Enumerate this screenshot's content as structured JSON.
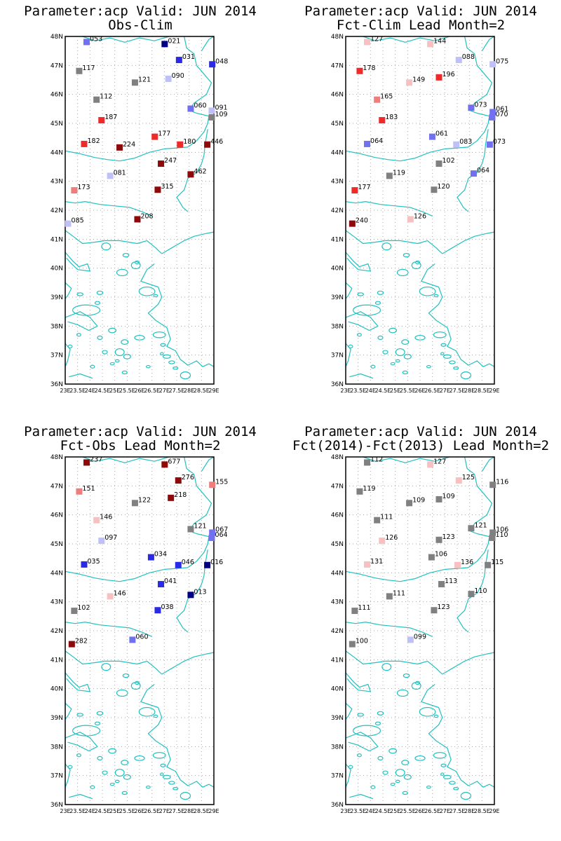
{
  "colors": {
    "coast": "#22c0c0",
    "grid": "#a8a8a8",
    "frame": "#000000",
    "scale": {
      "darkblue": "#000080",
      "blue": "#2a2ae6",
      "medblue": "#7070f0",
      "lightblue": "#c0c0f8",
      "gray": "#808080",
      "lightred": "#f8c0c0",
      "pink": "#f07c7c",
      "red": "#ee2a2a",
      "darkred": "#8c0a0a"
    }
  },
  "axes": {
    "lat_range": [
      36,
      48
    ],
    "lon_range": [
      23,
      29
    ],
    "lat_ticks": [
      "36N",
      "37N",
      "38N",
      "39N",
      "40N",
      "41N",
      "42N",
      "43N",
      "44N",
      "45N",
      "46N",
      "47N",
      "48N"
    ],
    "lon_ticks": [
      "23E",
      "23.5E",
      "24E",
      "24.5E",
      "25E",
      "25.5E",
      "26E",
      "26.5E",
      "27E",
      "27.5E",
      "28E",
      "28.5E",
      "29E"
    ]
  },
  "panels": [
    {
      "title_line1": "Parameter:acp Valid: JUN 2014",
      "title_line2": "Obs-Clim",
      "stations": [
        {
          "lon": 23.85,
          "lat": 47.82,
          "label": "053",
          "color": "medblue"
        },
        {
          "lon": 27.0,
          "lat": 47.75,
          "label": "021",
          "color": "darkblue"
        },
        {
          "lon": 27.58,
          "lat": 47.2,
          "label": "031",
          "color": "blue"
        },
        {
          "lon": 28.92,
          "lat": 47.05,
          "label": "048",
          "color": "blue"
        },
        {
          "lon": 23.55,
          "lat": 46.82,
          "label": "117",
          "color": "gray"
        },
        {
          "lon": 27.15,
          "lat": 46.55,
          "label": "090",
          "color": "lightblue"
        },
        {
          "lon": 25.8,
          "lat": 46.42,
          "label": "121",
          "color": "gray"
        },
        {
          "lon": 24.25,
          "lat": 45.83,
          "label": "112",
          "color": "gray"
        },
        {
          "lon": 28.05,
          "lat": 45.52,
          "label": "060",
          "color": "medblue"
        },
        {
          "lon": 28.9,
          "lat": 45.45,
          "label": "091",
          "color": "lightblue"
        },
        {
          "lon": 28.9,
          "lat": 45.22,
          "label": "109",
          "color": "gray"
        },
        {
          "lon": 24.45,
          "lat": 45.12,
          "label": "187",
          "color": "red"
        },
        {
          "lon": 26.6,
          "lat": 44.55,
          "label": "177",
          "color": "red"
        },
        {
          "lon": 23.75,
          "lat": 44.3,
          "label": "182",
          "color": "red"
        },
        {
          "lon": 27.62,
          "lat": 44.28,
          "label": "180",
          "color": "red"
        },
        {
          "lon": 28.72,
          "lat": 44.28,
          "label": "446",
          "color": "darkred"
        },
        {
          "lon": 25.18,
          "lat": 44.18,
          "label": "224",
          "color": "darkred"
        },
        {
          "lon": 26.85,
          "lat": 43.62,
          "label": "247",
          "color": "darkred"
        },
        {
          "lon": 24.8,
          "lat": 43.2,
          "label": "081",
          "color": "lightblue"
        },
        {
          "lon": 28.05,
          "lat": 43.25,
          "label": "462",
          "color": "darkred"
        },
        {
          "lon": 23.35,
          "lat": 42.7,
          "label": "173",
          "color": "pink"
        },
        {
          "lon": 26.72,
          "lat": 42.72,
          "label": "315",
          "color": "darkred"
        },
        {
          "lon": 25.9,
          "lat": 41.7,
          "label": "208",
          "color": "darkred"
        },
        {
          "lon": 23.1,
          "lat": 41.55,
          "label": "085",
          "color": "lightblue"
        }
      ]
    },
    {
      "title_line1": "Parameter:acp Valid: JUN 2014",
      "title_line2": "Fct-Clim Lead Month=2",
      "stations": [
        {
          "lon": 23.85,
          "lat": 47.82,
          "label": "127",
          "color": "lightred"
        },
        {
          "lon": 26.4,
          "lat": 47.75,
          "label": "144",
          "color": "lightred"
        },
        {
          "lon": 27.55,
          "lat": 47.2,
          "label": "088",
          "color": "lightblue"
        },
        {
          "lon": 28.92,
          "lat": 47.05,
          "label": "075",
          "color": "lightblue"
        },
        {
          "lon": 23.55,
          "lat": 46.82,
          "label": "178",
          "color": "red"
        },
        {
          "lon": 26.75,
          "lat": 46.6,
          "label": "196",
          "color": "red"
        },
        {
          "lon": 25.55,
          "lat": 46.42,
          "label": "149",
          "color": "lightred"
        },
        {
          "lon": 24.25,
          "lat": 45.83,
          "label": "165",
          "color": "pink"
        },
        {
          "lon": 28.05,
          "lat": 45.55,
          "label": "073",
          "color": "medblue"
        },
        {
          "lon": 28.92,
          "lat": 45.4,
          "label": "061",
          "color": "medblue"
        },
        {
          "lon": 28.9,
          "lat": 45.22,
          "label": "070",
          "color": "medblue"
        },
        {
          "lon": 24.45,
          "lat": 45.12,
          "label": "183",
          "color": "red"
        },
        {
          "lon": 26.48,
          "lat": 44.55,
          "label": "061",
          "color": "medblue"
        },
        {
          "lon": 23.85,
          "lat": 44.3,
          "label": "064",
          "color": "medblue"
        },
        {
          "lon": 27.45,
          "lat": 44.28,
          "label": "083",
          "color": "lightblue"
        },
        {
          "lon": 28.8,
          "lat": 44.28,
          "label": "073",
          "color": "medblue"
        },
        {
          "lon": 26.75,
          "lat": 43.62,
          "label": "102",
          "color": "gray"
        },
        {
          "lon": 24.75,
          "lat": 43.2,
          "label": "119",
          "color": "gray"
        },
        {
          "lon": 28.15,
          "lat": 43.28,
          "label": "064",
          "color": "medblue"
        },
        {
          "lon": 23.35,
          "lat": 42.7,
          "label": "177",
          "color": "red"
        },
        {
          "lon": 26.55,
          "lat": 42.72,
          "label": "120",
          "color": "gray"
        },
        {
          "lon": 25.6,
          "lat": 41.7,
          "label": "126",
          "color": "lightred"
        },
        {
          "lon": 23.25,
          "lat": 41.55,
          "label": "240",
          "color": "darkred"
        }
      ]
    },
    {
      "title_line1": "Parameter:acp Valid: JUN 2014",
      "title_line2": "Fct-Obs Lead Month=2",
      "stations": [
        {
          "lon": 23.85,
          "lat": 47.82,
          "label": "237",
          "color": "darkred"
        },
        {
          "lon": 27.0,
          "lat": 47.75,
          "label": "677",
          "color": "darkred"
        },
        {
          "lon": 27.55,
          "lat": 47.2,
          "label": "276",
          "color": "darkred"
        },
        {
          "lon": 28.92,
          "lat": 47.05,
          "label": "155",
          "color": "pink"
        },
        {
          "lon": 23.55,
          "lat": 46.82,
          "label": "151",
          "color": "pink"
        },
        {
          "lon": 27.25,
          "lat": 46.6,
          "label": "218",
          "color": "darkred"
        },
        {
          "lon": 25.8,
          "lat": 46.42,
          "label": "122",
          "color": "gray"
        },
        {
          "lon": 24.25,
          "lat": 45.83,
          "label": "146",
          "color": "lightred"
        },
        {
          "lon": 28.05,
          "lat": 45.52,
          "label": "121",
          "color": "gray"
        },
        {
          "lon": 28.92,
          "lat": 45.4,
          "label": "067",
          "color": "medblue"
        },
        {
          "lon": 28.9,
          "lat": 45.22,
          "label": "064",
          "color": "medblue"
        },
        {
          "lon": 24.45,
          "lat": 45.12,
          "label": "097",
          "color": "lightblue"
        },
        {
          "lon": 26.45,
          "lat": 44.55,
          "label": "034",
          "color": "blue"
        },
        {
          "lon": 23.75,
          "lat": 44.3,
          "label": "035",
          "color": "blue"
        },
        {
          "lon": 27.55,
          "lat": 44.28,
          "label": "046",
          "color": "blue"
        },
        {
          "lon": 28.72,
          "lat": 44.28,
          "label": "016",
          "color": "darkblue"
        },
        {
          "lon": 26.85,
          "lat": 43.62,
          "label": "041",
          "color": "blue"
        },
        {
          "lon": 24.8,
          "lat": 43.2,
          "label": "146",
          "color": "lightred"
        },
        {
          "lon": 28.05,
          "lat": 43.25,
          "label": "013",
          "color": "darkblue"
        },
        {
          "lon": 23.35,
          "lat": 42.7,
          "label": "102",
          "color": "gray"
        },
        {
          "lon": 26.72,
          "lat": 42.72,
          "label": "038",
          "color": "blue"
        },
        {
          "lon": 25.7,
          "lat": 41.7,
          "label": "060",
          "color": "medblue"
        },
        {
          "lon": 23.25,
          "lat": 41.55,
          "label": "282",
          "color": "darkred"
        }
      ]
    },
    {
      "title_line1": "Parameter:acp Valid: JUN 2014",
      "title_line2": "Fct(2014)-Fct(2013) Lead Month=2",
      "stations": [
        {
          "lon": 23.85,
          "lat": 47.82,
          "label": "112",
          "color": "gray"
        },
        {
          "lon": 26.4,
          "lat": 47.75,
          "label": "127",
          "color": "lightred"
        },
        {
          "lon": 27.55,
          "lat": 47.2,
          "label": "125",
          "color": "lightred"
        },
        {
          "lon": 28.92,
          "lat": 47.05,
          "label": "116",
          "color": "gray"
        },
        {
          "lon": 23.55,
          "lat": 46.82,
          "label": "119",
          "color": "gray"
        },
        {
          "lon": 26.75,
          "lat": 46.55,
          "label": "109",
          "color": "gray"
        },
        {
          "lon": 25.55,
          "lat": 46.42,
          "label": "109",
          "color": "gray"
        },
        {
          "lon": 24.25,
          "lat": 45.83,
          "label": "111",
          "color": "gray"
        },
        {
          "lon": 28.05,
          "lat": 45.55,
          "label": "121",
          "color": "gray"
        },
        {
          "lon": 28.92,
          "lat": 45.4,
          "label": "106",
          "color": "gray"
        },
        {
          "lon": 28.9,
          "lat": 45.22,
          "label": "110",
          "color": "gray"
        },
        {
          "lon": 24.45,
          "lat": 45.12,
          "label": "126",
          "color": "lightred"
        },
        {
          "lon": 26.75,
          "lat": 45.15,
          "label": "123",
          "color": "gray"
        },
        {
          "lon": 26.45,
          "lat": 44.55,
          "label": "106",
          "color": "gray"
        },
        {
          "lon": 23.85,
          "lat": 44.3,
          "label": "131",
          "color": "lightred"
        },
        {
          "lon": 27.5,
          "lat": 44.28,
          "label": "136",
          "color": "lightred"
        },
        {
          "lon": 28.72,
          "lat": 44.28,
          "label": "115",
          "color": "gray"
        },
        {
          "lon": 26.85,
          "lat": 43.62,
          "label": "113",
          "color": "gray"
        },
        {
          "lon": 24.75,
          "lat": 43.2,
          "label": "111",
          "color": "gray"
        },
        {
          "lon": 28.05,
          "lat": 43.28,
          "label": "110",
          "color": "gray"
        },
        {
          "lon": 23.35,
          "lat": 42.7,
          "label": "111",
          "color": "gray"
        },
        {
          "lon": 26.55,
          "lat": 42.72,
          "label": "123",
          "color": "gray"
        },
        {
          "lon": 25.6,
          "lat": 41.7,
          "label": "099",
          "color": "lightblue"
        },
        {
          "lon": 23.25,
          "lat": 41.55,
          "label": "100",
          "color": "gray"
        }
      ]
    }
  ]
}
